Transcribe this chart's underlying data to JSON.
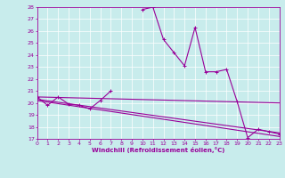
{
  "xlabel": "Windchill (Refroidissement éolien,°C)",
  "ylabel": "",
  "bg_color": "#c8ecec",
  "grid_color": "#ffffff",
  "line_color": "#990099",
  "ylim": [
    17,
    28
  ],
  "xlim": [
    0,
    23
  ],
  "yticks": [
    17,
    18,
    19,
    20,
    21,
    22,
    23,
    24,
    25,
    26,
    27,
    28
  ],
  "xticks": [
    0,
    1,
    2,
    3,
    4,
    5,
    6,
    7,
    8,
    9,
    10,
    11,
    12,
    13,
    14,
    15,
    16,
    17,
    18,
    19,
    20,
    21,
    22,
    23
  ],
  "series": [
    {
      "x": [
        0,
        1,
        2,
        3,
        4,
        5,
        6,
        7,
        8,
        9,
        10,
        11,
        12,
        13,
        14,
        15,
        16,
        17,
        18,
        19,
        20,
        21,
        22,
        23
      ],
      "y": [
        20.5,
        19.8,
        20.5,
        19.9,
        19.8,
        19.5,
        20.2,
        21.0,
        null,
        null,
        27.8,
        28.0,
        25.3,
        24.2,
        23.1,
        26.3,
        22.6,
        22.6,
        22.8,
        20.1,
        17.1,
        17.8,
        17.6,
        17.4
      ],
      "marker": "+",
      "linewidth": 0.8,
      "markersize": 3.5
    },
    {
      "x": [
        0,
        23
      ],
      "y": [
        20.5,
        20.0
      ],
      "marker": null,
      "linewidth": 0.8
    },
    {
      "x": [
        0,
        23
      ],
      "y": [
        20.3,
        17.5
      ],
      "marker": null,
      "linewidth": 0.8
    },
    {
      "x": [
        0,
        23
      ],
      "y": [
        20.2,
        17.2
      ],
      "marker": null,
      "linewidth": 0.8
    }
  ]
}
